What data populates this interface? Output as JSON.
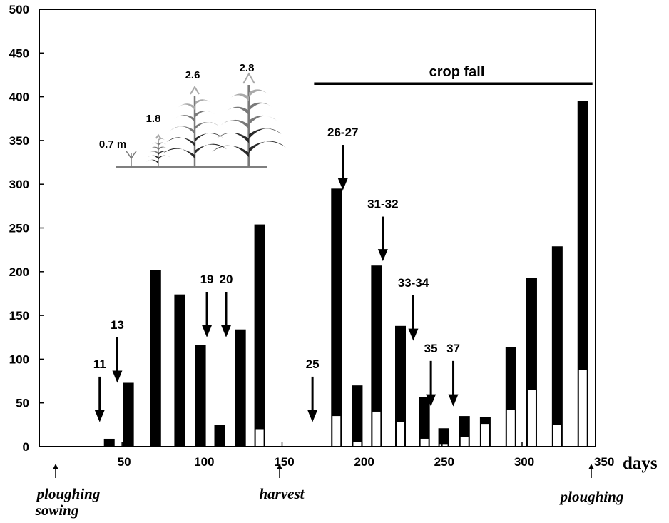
{
  "chart_data": {
    "type": "bar",
    "xlabel": "days",
    "ylabel": "",
    "xlim": [
      0,
      350
    ],
    "ylim": [
      0,
      500
    ],
    "x_ticks": [
      50,
      100,
      150,
      200,
      250,
      300,
      350
    ],
    "y_ticks": [
      0,
      50,
      100,
      150,
      200,
      250,
      300,
      350,
      400,
      450,
      500
    ],
    "grid": false,
    "bars": [
      {
        "day": 42,
        "total": 9,
        "white": 0
      },
      {
        "day": 54,
        "total": 73,
        "white": 0
      },
      {
        "day": 71,
        "total": 202,
        "white": 0
      },
      {
        "day": 86,
        "total": 174,
        "white": 0
      },
      {
        "day": 99,
        "total": 116,
        "white": 0
      },
      {
        "day": 111,
        "total": 25,
        "white": 0
      },
      {
        "day": 124,
        "total": 134,
        "white": 0
      },
      {
        "day": 136,
        "total": 254,
        "white": 20
      },
      {
        "day": 184,
        "total": 295,
        "white": 35
      },
      {
        "day": 197,
        "total": 70,
        "white": 5
      },
      {
        "day": 209,
        "total": 207,
        "white": 40
      },
      {
        "day": 224,
        "total": 138,
        "white": 28
      },
      {
        "day": 239,
        "total": 57,
        "white": 9
      },
      {
        "day": 251,
        "total": 21,
        "white": 3
      },
      {
        "day": 264,
        "total": 35,
        "white": 11
      },
      {
        "day": 277,
        "total": 34,
        "white": 26
      },
      {
        "day": 293,
        "total": 114,
        "white": 42
      },
      {
        "day": 306,
        "total": 193,
        "white": 65
      },
      {
        "day": 322,
        "total": 229,
        "white": 25
      },
      {
        "day": 338,
        "total": 395,
        "white": 88
      }
    ],
    "arrows": [
      {
        "label": "11",
        "day": 36,
        "top": 80,
        "tip": 28
      },
      {
        "label": "13",
        "day": 47,
        "top": 125,
        "tip": 73
      },
      {
        "label": "19",
        "day": 103,
        "top": 177,
        "tip": 125
      },
      {
        "label": "20",
        "day": 115,
        "top": 177,
        "tip": 125
      },
      {
        "label": "25",
        "day": 169,
        "top": 80,
        "tip": 28
      },
      {
        "label": "26-27",
        "day": 188,
        "top": 345,
        "tip": 293
      },
      {
        "label": "31-32",
        "day": 213,
        "top": 263,
        "tip": 212
      },
      {
        "label": "33-34",
        "day": 232,
        "top": 173,
        "tip": 121
      },
      {
        "label": "35",
        "day": 243,
        "top": 98,
        "tip": 46
      },
      {
        "label": "37",
        "day": 257,
        "top": 98,
        "tip": 46
      }
    ],
    "crop_fall": {
      "label": "crop fall",
      "start": 170,
      "end": 344,
      "y": 415
    },
    "plant_heights": [
      "0.7 m",
      "1.8",
      "2.6",
      "2.8"
    ],
    "events": [
      {
        "label": "ploughing",
        "day": 2
      },
      {
        "label": "sowing",
        "day": 2
      },
      {
        "label": "harvest",
        "day": 151
      },
      {
        "label": "ploughing",
        "day": 343
      }
    ],
    "colors": {
      "bar_fill": "#000000",
      "inner_fill": "#ffffff",
      "plant_dark": "#2a2a2a",
      "plant_mid": "#7a7a7a",
      "plant_light": "#a9a9a9"
    }
  }
}
